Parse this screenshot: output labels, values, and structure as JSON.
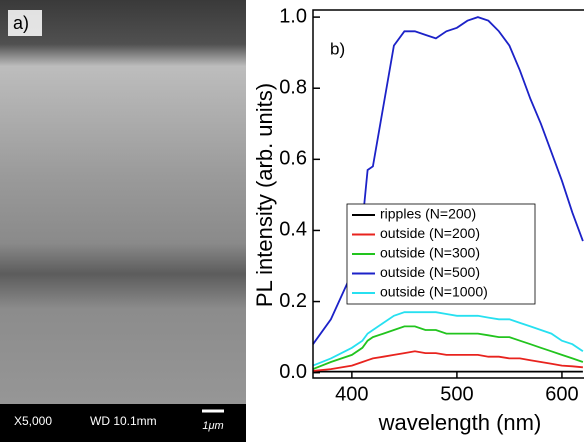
{
  "image_panel": {
    "label": "a)",
    "magnification": "X5,000",
    "working_distance": "WD 10.1mm",
    "scale_bar": "1μm"
  },
  "chart_data": {
    "type": "line",
    "panel_label": "b)",
    "x_label": "wavelength (nm)",
    "y_label": "PL intensity (arb. units)",
    "x": [
      363,
      380,
      400,
      410,
      415,
      420,
      430,
      440,
      450,
      460,
      470,
      480,
      490,
      500,
      510,
      520,
      530,
      540,
      550,
      560,
      570,
      580,
      590,
      600,
      610,
      620
    ],
    "series": [
      {
        "name": "ripples (N=200)",
        "color": "#000000",
        "values": [
          0.003,
          0.003,
          0.003,
          0.003,
          0.003,
          0.003,
          0.003,
          0.003,
          0.003,
          0.003,
          0.003,
          0.003,
          0.003,
          0.003,
          0.003,
          0.003,
          0.003,
          0.003,
          0.003,
          0.003,
          0.003,
          0.003,
          0.003,
          0.003,
          0.003,
          0.003
        ]
      },
      {
        "name": "outside (N=200)",
        "color": "#e8231e",
        "values": [
          0.005,
          0.01,
          0.02,
          0.03,
          0.035,
          0.04,
          0.045,
          0.05,
          0.055,
          0.06,
          0.055,
          0.055,
          0.05,
          0.05,
          0.05,
          0.05,
          0.045,
          0.045,
          0.04,
          0.04,
          0.035,
          0.03,
          0.025,
          0.02,
          0.018,
          0.015
        ]
      },
      {
        "name": "outside (N=300)",
        "color": "#22c41e",
        "values": [
          0.01,
          0.03,
          0.05,
          0.07,
          0.09,
          0.1,
          0.11,
          0.12,
          0.13,
          0.13,
          0.12,
          0.12,
          0.11,
          0.11,
          0.11,
          0.11,
          0.105,
          0.1,
          0.1,
          0.09,
          0.08,
          0.07,
          0.06,
          0.05,
          0.04,
          0.03
        ]
      },
      {
        "name": "outside (N=500)",
        "color": "#1c22c8",
        "values": [
          0.08,
          0.15,
          0.28,
          0.42,
          0.57,
          0.58,
          0.75,
          0.92,
          0.96,
          0.96,
          0.95,
          0.94,
          0.96,
          0.97,
          0.99,
          1.0,
          0.99,
          0.96,
          0.92,
          0.85,
          0.77,
          0.7,
          0.62,
          0.54,
          0.45,
          0.37
        ]
      },
      {
        "name": "outside (N=1000)",
        "color": "#27e0f0",
        "values": [
          0.02,
          0.04,
          0.07,
          0.09,
          0.11,
          0.12,
          0.14,
          0.16,
          0.17,
          0.17,
          0.17,
          0.17,
          0.165,
          0.16,
          0.16,
          0.16,
          0.155,
          0.15,
          0.15,
          0.14,
          0.13,
          0.12,
          0.11,
          0.09,
          0.08,
          0.06
        ]
      }
    ],
    "xlim": [
      363,
      621
    ],
    "xticks": [
      400,
      500,
      600
    ],
    "ylim": [
      -0.015,
      1.02
    ],
    "yticks": [
      {
        "value": 0,
        "label": "0.0"
      },
      0.2,
      0.4,
      0.6,
      0.8,
      {
        "value": 1,
        "label": "1.0"
      }
    ]
  }
}
